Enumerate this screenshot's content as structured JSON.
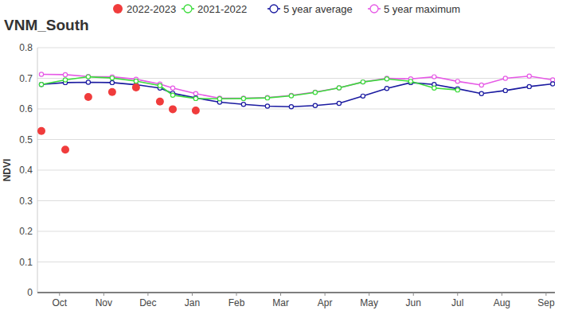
{
  "chart_data": {
    "type": "line",
    "title": "VNM_South",
    "y_label": "NDVI",
    "x": [
      0.09,
      0.63,
      1.15,
      1.69,
      2.23,
      2.77,
      3.06,
      3.58,
      4.12,
      4.66,
      5.2,
      5.74,
      6.28,
      6.82,
      7.36,
      7.9,
      8.44,
      8.97,
      9.5,
      10.04,
      10.58,
      11.12,
      11.65
    ],
    "xlim": [
      0,
      11.7
    ],
    "xticks": [
      {
        "value": 0.5,
        "label": "Oct"
      },
      {
        "value": 1.5,
        "label": "Nov"
      },
      {
        "value": 2.5,
        "label": "Dec"
      },
      {
        "value": 3.5,
        "label": "Jan"
      },
      {
        "value": 4.5,
        "label": "Feb"
      },
      {
        "value": 5.5,
        "label": "Mar"
      },
      {
        "value": 6.5,
        "label": "Apr"
      },
      {
        "value": 7.5,
        "label": "May"
      },
      {
        "value": 8.5,
        "label": "Jun"
      },
      {
        "value": 9.5,
        "label": "Jul"
      },
      {
        "value": 10.5,
        "label": "Aug"
      },
      {
        "value": 11.5,
        "label": "Sep"
      }
    ],
    "ylim": [
      0,
      0.8
    ],
    "yticks": [
      0,
      0.1,
      0.2,
      0.3,
      0.4,
      0.5,
      0.6,
      0.7,
      0.8
    ],
    "grid": true,
    "legend": "top",
    "series": [
      {
        "name": "2022-2023",
        "color": "#f03c3c",
        "marker": "circle",
        "line_style": "none",
        "values": [
          0.528,
          0.467,
          0.639,
          0.655,
          0.67,
          0.624,
          0.599,
          0.595,
          null,
          null,
          null,
          null,
          null,
          null,
          null,
          null,
          null,
          null,
          null,
          null,
          null,
          null,
          null
        ]
      },
      {
        "name": "2021-2022",
        "color": "#3cdc3c",
        "marker": "open-circle",
        "line_style": "solid",
        "values": [
          0.68,
          0.695,
          0.705,
          0.701,
          0.691,
          0.676,
          0.645,
          0.634,
          0.633,
          0.634,
          0.636,
          0.643,
          0.654,
          0.669,
          0.688,
          0.698,
          0.69,
          0.668,
          0.662,
          null,
          null,
          null,
          null
        ]
      },
      {
        "name": "5 year average",
        "color": "#1a1aa0",
        "marker": "open-circle",
        "line_style": "solid",
        "values": [
          0.68,
          0.686,
          0.687,
          0.686,
          0.679,
          0.668,
          0.651,
          0.636,
          0.622,
          0.615,
          0.609,
          0.607,
          0.611,
          0.618,
          0.642,
          0.667,
          0.686,
          0.68,
          0.666,
          0.65,
          0.66,
          0.673,
          0.682
        ]
      },
      {
        "name": "5 year maximum",
        "color": "#e65ae6",
        "marker": "open-circle",
        "line_style": "solid",
        "values": [
          0.713,
          0.712,
          0.706,
          0.705,
          0.697,
          0.681,
          0.668,
          0.65,
          0.635,
          0.635,
          0.637,
          0.644,
          0.655,
          0.669,
          0.688,
          0.7,
          0.698,
          0.705,
          0.69,
          0.678,
          0.7,
          0.707,
          0.695
        ]
      }
    ]
  }
}
